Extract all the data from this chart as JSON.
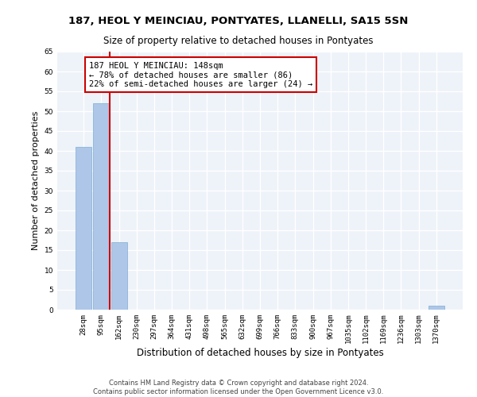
{
  "title_line1": "187, HEOL Y MEINCIAU, PONTYATES, LLANELLI, SA15 5SN",
  "title_line2": "Size of property relative to detached houses in Pontyates",
  "xlabel": "Distribution of detached houses by size in Pontyates",
  "ylabel": "Number of detached properties",
  "categories": [
    "28sqm",
    "95sqm",
    "162sqm",
    "230sqm",
    "297sqm",
    "364sqm",
    "431sqm",
    "498sqm",
    "565sqm",
    "632sqm",
    "699sqm",
    "766sqm",
    "833sqm",
    "900sqm",
    "967sqm",
    "1035sqm",
    "1102sqm",
    "1169sqm",
    "1236sqm",
    "1303sqm",
    "1370sqm"
  ],
  "values": [
    41,
    52,
    17,
    0,
    0,
    0,
    0,
    0,
    0,
    0,
    0,
    0,
    0,
    0,
    0,
    0,
    0,
    0,
    0,
    0,
    1
  ],
  "bar_color": "#aec6e8",
  "bar_edgecolor": "#7bafd4",
  "vline_x_index": 2,
  "vline_color": "#cc0000",
  "ylim": [
    0,
    65
  ],
  "yticks": [
    0,
    5,
    10,
    15,
    20,
    25,
    30,
    35,
    40,
    45,
    50,
    55,
    60,
    65
  ],
  "annotation_text": "187 HEOL Y MEINCIAU: 148sqm\n← 78% of detached houses are smaller (86)\n22% of semi-detached houses are larger (24) →",
  "annotation_box_color": "#ffffff",
  "annotation_box_edgecolor": "#cc0000",
  "footer_line1": "Contains HM Land Registry data © Crown copyright and database right 2024.",
  "footer_line2": "Contains public sector information licensed under the Open Government Licence v3.0.",
  "background_color": "#eef2f9",
  "grid_color": "#ffffff",
  "title_fontsize": 9.5,
  "subtitle_fontsize": 8.5,
  "tick_fontsize": 6.5,
  "ylabel_fontsize": 8,
  "xlabel_fontsize": 8.5,
  "annotation_fontsize": 7.5,
  "footer_fontsize": 6
}
